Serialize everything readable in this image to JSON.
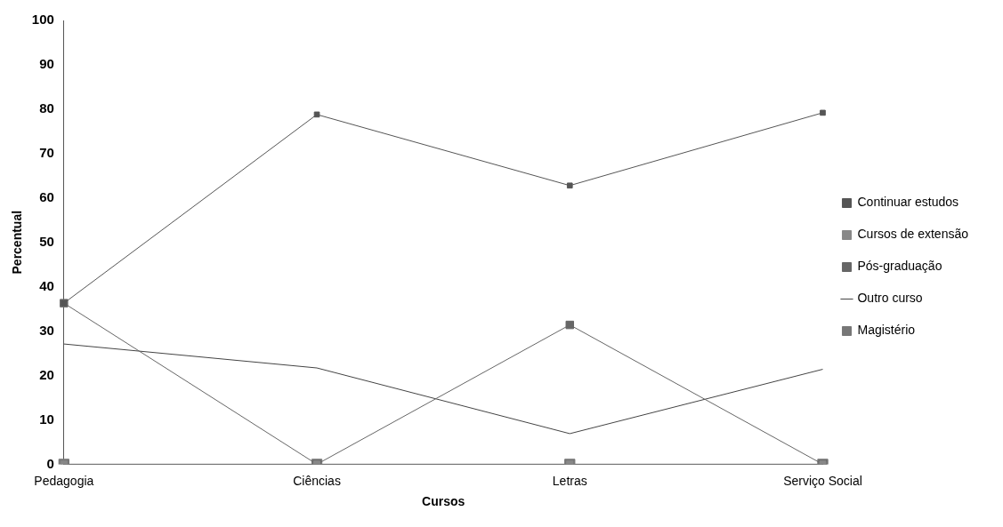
{
  "chart_data": {
    "type": "line",
    "xlabel": "Cursos",
    "ylabel": "Percentual",
    "categories": [
      "Pedagogia",
      "Ciências",
      "Letras",
      "Serviço Social"
    ],
    "series": [
      {
        "name": "Continuar estudos",
        "color": "#555555",
        "marker": "square",
        "values": [
          36.3,
          78.8,
          62.8,
          79.2
        ]
      },
      {
        "name": "Cursos de extensão",
        "color": "#888888",
        "marker": "square",
        "values": [
          0,
          0,
          0,
          0
        ]
      },
      {
        "name": "Pós-graduação",
        "color": "#666666",
        "marker": "square",
        "values": [
          36.3,
          0,
          31.4,
          0
        ]
      },
      {
        "name": "Outro curso",
        "color": "#444444",
        "marker": "none",
        "values": [
          27.1,
          21.7,
          6.9,
          21.4
        ]
      },
      {
        "name": "Magistério",
        "color": "#777777",
        "marker": "square",
        "values": [
          0,
          0,
          0,
          0
        ]
      }
    ],
    "ylim": [
      0,
      100
    ],
    "yticks": [
      0,
      10,
      20,
      30,
      40,
      50,
      60,
      70,
      80,
      90,
      100
    ],
    "grid": false,
    "legend": "right"
  }
}
